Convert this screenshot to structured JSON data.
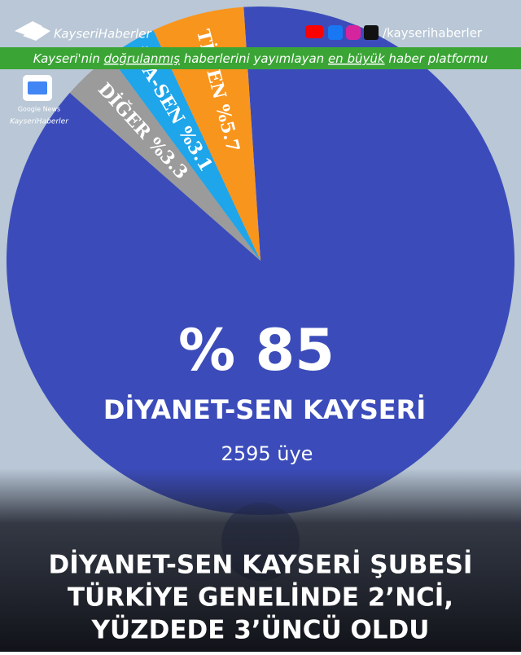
{
  "header": {
    "brand": "KayseriHaberler",
    "handle": "/kayserihaberler",
    "tagline": [
      "Kayseri'nin ",
      "doğrulanmış",
      " haberlerini yayımlayan ",
      "en büyük",
      " haber platformu"
    ],
    "badge": [
      "Google News",
      "KayseriHaberler"
    ]
  },
  "chart_data": {
    "type": "pie",
    "categories": [
      "DİYANET-SEN KAYSERİ",
      "DİĞER",
      "İVA-SEN",
      "Tİ SEN"
    ],
    "values": [
      85,
      3.3,
      3.1,
      5.7
    ],
    "value_labels": [
      "% 85",
      "%3.3",
      "%3.1",
      "%5.7"
    ],
    "colors": [
      "#3b4cba",
      "#9b9b9b",
      "#1ea5ea",
      "#f8951d"
    ],
    "annotation": "2595 üye"
  },
  "headline": [
    "DİYANET-SEN KAYSERİ ŞUBESİ",
    "TÜRKİYE GENELİNDE 2’NCİ,",
    "YÜZDEDE 3’ÜNCÜ OLDU"
  ]
}
